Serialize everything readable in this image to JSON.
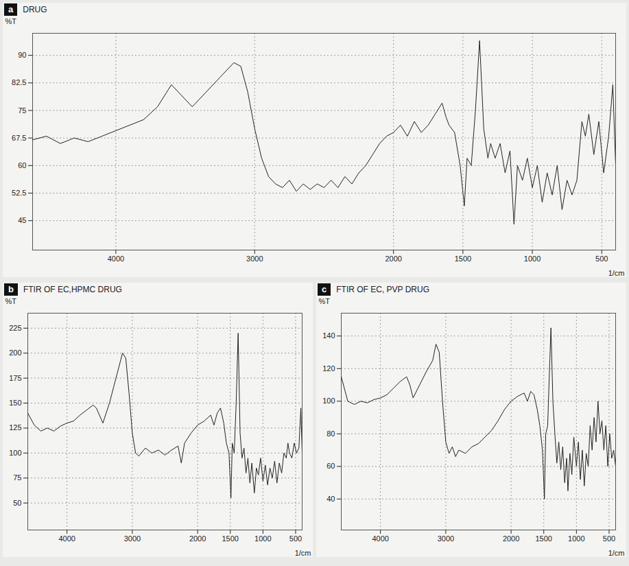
{
  "chart_data": [
    {
      "type": "line",
      "panel_label": "a",
      "title": "DRUG",
      "xlabel": "1/cm",
      "ylabel": "%T",
      "color": "#222222",
      "grid": true,
      "xlim": [
        4600,
        400
      ],
      "ylim": [
        37,
        96
      ],
      "xticks": [
        4000,
        3000,
        2000,
        1500,
        1000,
        500
      ],
      "yticks": [
        45,
        52.5,
        60,
        67.5,
        75,
        82.5,
        90
      ],
      "x": [
        4600,
        4500,
        4400,
        4300,
        4200,
        4100,
        4000,
        3900,
        3800,
        3700,
        3600,
        3550,
        3450,
        3350,
        3250,
        3150,
        3100,
        3050,
        3000,
        2950,
        2900,
        2850,
        2800,
        2750,
        2700,
        2650,
        2600,
        2550,
        2500,
        2450,
        2400,
        2350,
        2300,
        2250,
        2200,
        2150,
        2100,
        2050,
        2000,
        1950,
        1900,
        1850,
        1800,
        1750,
        1700,
        1650,
        1620,
        1600,
        1560,
        1520,
        1490,
        1470,
        1440,
        1410,
        1380,
        1350,
        1320,
        1300,
        1268,
        1232,
        1196,
        1161,
        1132,
        1107,
        1071,
        1036,
        1000,
        964,
        929,
        893,
        857,
        821,
        786,
        750,
        714,
        679,
        643,
        618,
        593,
        557,
        521,
        486,
        450,
        420,
        400
      ],
      "values": [
        67,
        68,
        66,
        67.5,
        66.5,
        68,
        69.5,
        71,
        72.5,
        76,
        82,
        80,
        76,
        80,
        84,
        88,
        87,
        80,
        70,
        62,
        57,
        55,
        54,
        56,
        53,
        55,
        53.5,
        55,
        54,
        56,
        54,
        57,
        55,
        58,
        60,
        63,
        66,
        68,
        69,
        71,
        68,
        72,
        69,
        71,
        74,
        77,
        73,
        71,
        69,
        60,
        49,
        62,
        60,
        75,
        94,
        70,
        62,
        66,
        62,
        66,
        58,
        64,
        44,
        60,
        56,
        62,
        54,
        60,
        50,
        58,
        52,
        60,
        48,
        56,
        52,
        56,
        72,
        68,
        74,
        63,
        72,
        58,
        68,
        82,
        60
      ]
    },
    {
      "type": "line",
      "panel_label": "b",
      "title": "FTIR OF EC,HPMC DRUG",
      "xlabel": "1/cm",
      "ylabel": "%T",
      "color": "#222222",
      "grid": true,
      "xlim": [
        4600,
        400
      ],
      "ylim": [
        23,
        240
      ],
      "xticks": [
        4000,
        3000,
        2000,
        1500,
        1000,
        500
      ],
      "yticks": [
        50,
        75,
        100,
        125,
        150,
        175,
        200,
        225
      ],
      "x": [
        4600,
        4500,
        4400,
        4300,
        4200,
        4100,
        4000,
        3900,
        3800,
        3700,
        3600,
        3550,
        3450,
        3350,
        3250,
        3150,
        3100,
        3050,
        3000,
        2950,
        2900,
        2800,
        2700,
        2600,
        2500,
        2400,
        2300,
        2250,
        2200,
        2100,
        2000,
        1900,
        1800,
        1750,
        1700,
        1650,
        1600,
        1560,
        1520,
        1490,
        1470,
        1440,
        1410,
        1380,
        1350,
        1320,
        1290,
        1260,
        1230,
        1200,
        1170,
        1132,
        1100,
        1070,
        1036,
        1000,
        964,
        929,
        893,
        857,
        821,
        786,
        750,
        714,
        679,
        643,
        618,
        593,
        557,
        521,
        486,
        450,
        420,
        400
      ],
      "values": [
        140,
        128,
        122,
        125,
        122,
        127,
        130,
        132,
        138,
        143,
        148,
        145,
        130,
        150,
        175,
        200,
        195,
        160,
        120,
        100,
        97,
        105,
        100,
        103,
        98,
        103,
        107,
        90,
        110,
        120,
        128,
        132,
        138,
        128,
        140,
        145,
        130,
        110,
        100,
        55,
        110,
        100,
        150,
        220,
        120,
        95,
        105,
        80,
        95,
        70,
        90,
        60,
        85,
        78,
        95,
        72,
        88,
        68,
        85,
        75,
        92,
        70,
        90,
        80,
        100,
        95,
        110,
        100,
        95,
        110,
        100,
        105,
        145,
        100
      ]
    },
    {
      "type": "line",
      "panel_label": "c",
      "title": "FTIR OF EC, PVP DRUG",
      "xlabel": "1/cm",
      "ylabel": "%T",
      "color": "#222222",
      "grid": true,
      "xlim": [
        4600,
        400
      ],
      "ylim": [
        21,
        154
      ],
      "xticks": [
        4000,
        3000,
        2000,
        1500,
        1000,
        500
      ],
      "yticks": [
        40,
        60,
        80,
        100,
        120,
        140
      ],
      "x": [
        4600,
        4500,
        4400,
        4300,
        4200,
        4100,
        4000,
        3900,
        3800,
        3700,
        3600,
        3550,
        3500,
        3400,
        3300,
        3200,
        3150,
        3100,
        3050,
        3000,
        2950,
        2900,
        2850,
        2800,
        2700,
        2600,
        2500,
        2400,
        2300,
        2200,
        2100,
        2000,
        1900,
        1800,
        1750,
        1700,
        1650,
        1600,
        1560,
        1520,
        1490,
        1470,
        1440,
        1420,
        1390,
        1360,
        1330,
        1300,
        1270,
        1240,
        1210,
        1180,
        1150,
        1130,
        1100,
        1070,
        1040,
        1000,
        970,
        940,
        910,
        880,
        850,
        820,
        790,
        760,
        730,
        700,
        670,
        640,
        610,
        580,
        550,
        520,
        490,
        460,
        430,
        400
      ],
      "values": [
        115,
        100,
        98,
        100,
        99,
        101,
        102,
        104,
        108,
        112,
        115,
        110,
        102,
        110,
        118,
        125,
        135,
        130,
        100,
        75,
        68,
        72,
        66,
        70,
        68,
        72,
        74,
        78,
        82,
        88,
        95,
        100,
        103,
        105,
        100,
        106,
        104,
        95,
        85,
        70,
        40,
        80,
        85,
        110,
        145,
        100,
        80,
        62,
        75,
        58,
        72,
        50,
        65,
        45,
        68,
        55,
        78,
        60,
        75,
        52,
        70,
        48,
        68,
        60,
        85,
        70,
        90,
        75,
        100,
        80,
        88,
        70,
        85,
        60,
        80,
        65,
        70,
        60
      ]
    }
  ]
}
